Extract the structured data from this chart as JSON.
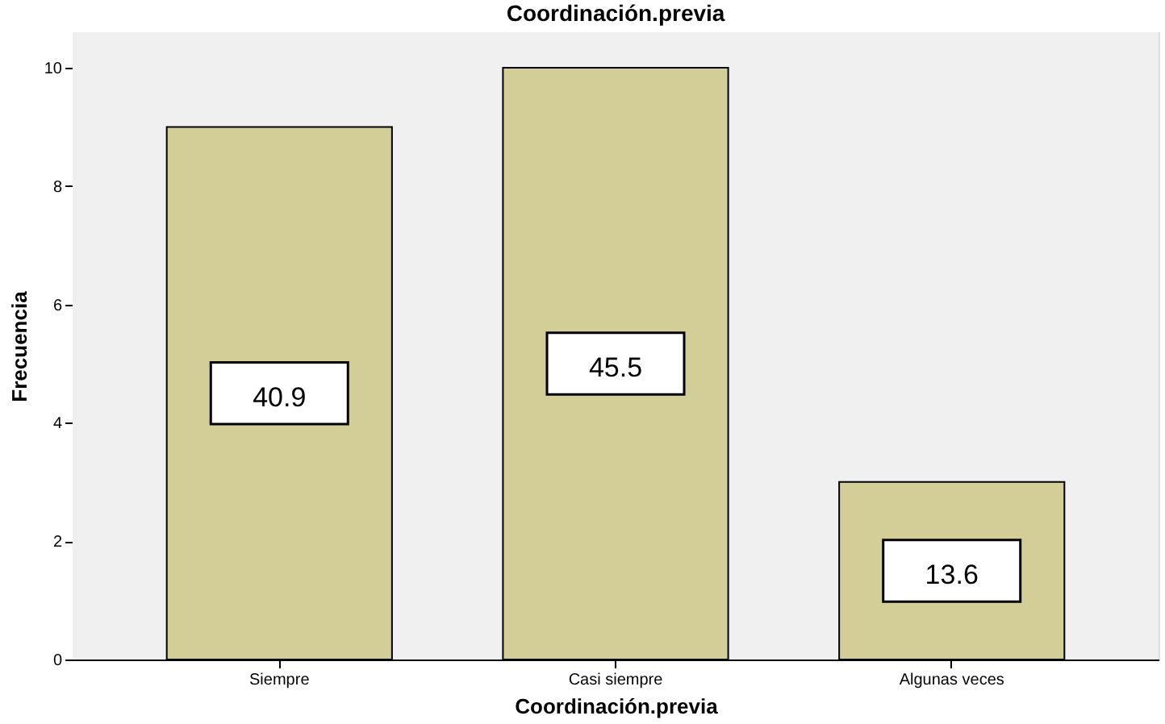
{
  "chart_data": {
    "type": "bar",
    "title": "Coordinación.previa",
    "xlabel": "Coordinación.previa",
    "ylabel": "Frecuencia",
    "categories": [
      "Siempre",
      "Casi siempre",
      "Algunas veces"
    ],
    "values": [
      9,
      10,
      3
    ],
    "annotations": [
      "40.9",
      "45.5",
      "13.6"
    ],
    "color": "#d3ce97",
    "ylim": [
      0,
      10.6
    ],
    "yticks": [
      0,
      2,
      4,
      6,
      8,
      10
    ]
  }
}
